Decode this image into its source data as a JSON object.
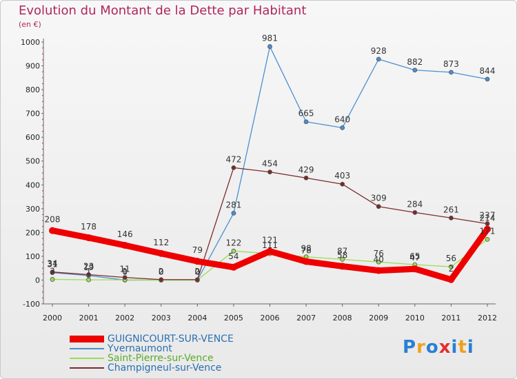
{
  "chart_data": {
    "type": "line",
    "title": "Evolution du Montant de la Dette par Habitant",
    "subtitle": "(en €)",
    "categories": [
      "2000",
      "2001",
      "2002",
      "2003",
      "2004",
      "2005",
      "2006",
      "2007",
      "2008",
      "2009",
      "2010",
      "2011",
      "2012"
    ],
    "ylim": [
      -100,
      1000
    ],
    "yticks": [
      -100,
      0,
      100,
      200,
      300,
      400,
      500,
      600,
      700,
      800,
      900,
      1000
    ],
    "grid": false,
    "legend_placement": "bottom-left",
    "series": [
      {
        "name": "Yvernaumont",
        "color": "#4a8fcf",
        "values": [
          31,
          19,
          0,
          0,
          0,
          281,
          981,
          665,
          640,
          928,
          882,
          873,
          844
        ],
        "labels": [
          "31",
          "19",
          "0",
          "0",
          "0",
          "281",
          "981",
          "665",
          "640",
          "928",
          "882",
          "873",
          "844"
        ]
      },
      {
        "name": "Saint-Pierre-sur-Vence",
        "color": "#99dd55",
        "values": [
          3,
          1,
          1,
          0,
          0,
          122,
          111,
          98,
          87,
          76,
          65,
          56,
          171
        ],
        "labels": [
          "3",
          "1",
          "1",
          "0",
          "0",
          "122",
          "111",
          "98",
          "87",
          "76",
          "65",
          "56",
          "171"
        ]
      },
      {
        "name": "Champigneul-sur-Vence",
        "color": "#7a2a2a",
        "values": [
          34,
          23,
          11,
          2,
          2,
          472,
          454,
          429,
          403,
          309,
          284,
          261,
          237
        ],
        "labels": [
          "34",
          "23",
          "11",
          "2",
          "2",
          "472",
          "454",
          "429",
          "403",
          "309",
          "284",
          "261",
          "237"
        ]
      },
      {
        "name": "GUIGNICOURT-SUR-VENCE",
        "color": "#ee0000",
        "values": [
          208,
          178,
          146,
          112,
          79,
          54,
          121,
          78,
          58,
          40,
          47,
          2,
          214
        ],
        "labels": [
          "208",
          "178",
          "146",
          "112",
          "79",
          "54",
          "121",
          "78",
          "58",
          "40",
          "47",
          "2",
          "214"
        ]
      }
    ]
  },
  "legend": [
    {
      "name": "GUIGNICOURT-SUR-VENCE",
      "color": "#ee0000",
      "thickness": 10
    },
    {
      "name": "Yvernaumont",
      "color": "#4a8fcf",
      "thickness": 2
    },
    {
      "name": "Saint-Pierre-sur-Vence",
      "color": "#99dd55",
      "thickness": 2
    },
    {
      "name": "Champigneul-sur-Vence",
      "color": "#7a2a2a",
      "thickness": 2
    }
  ],
  "logo": {
    "text": "Proxiti",
    "letter_colors": [
      "#2a7fd4",
      "#f0a020",
      "#2a7fd4",
      "#e03030",
      "#2a7fd4",
      "#f0a020",
      "#2a7fd4"
    ]
  }
}
